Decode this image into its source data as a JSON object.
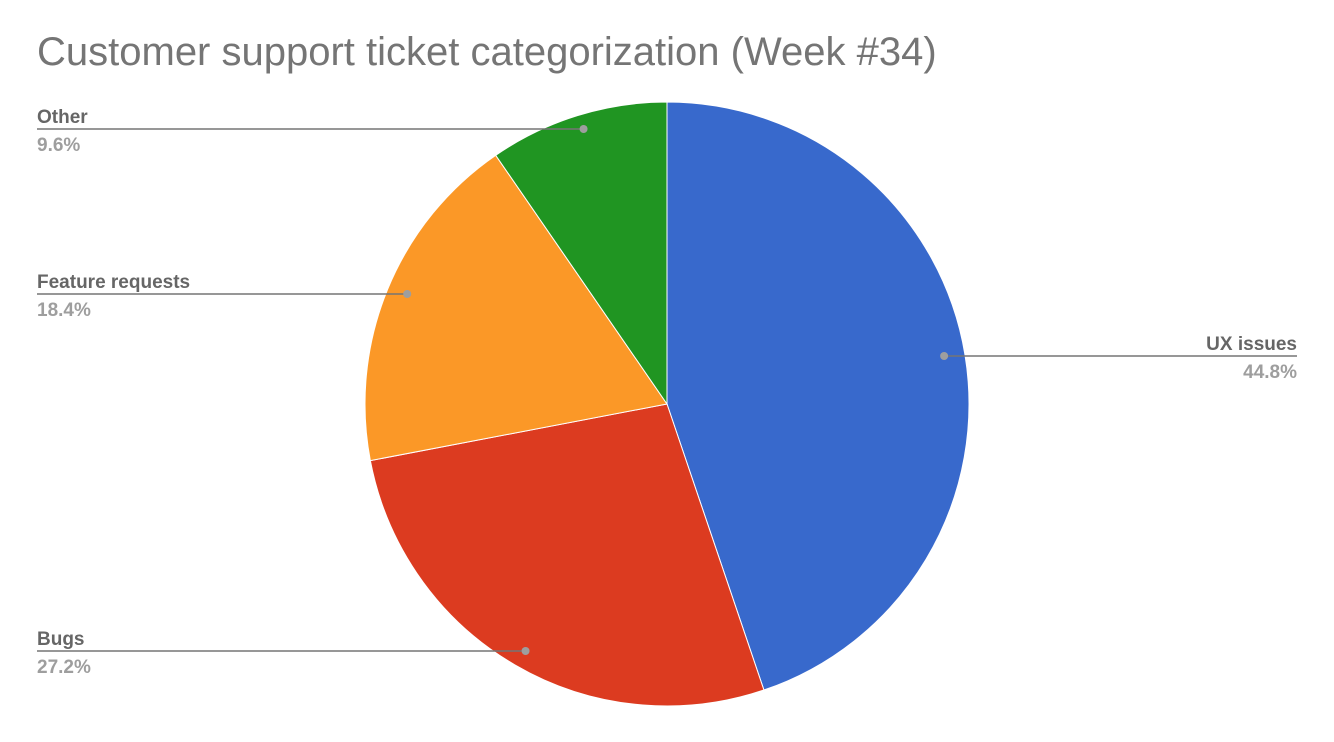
{
  "chart_data": {
    "type": "pie",
    "title": "Customer support ticket categorization (Week #34)",
    "slices": [
      {
        "label": "UX issues",
        "value": 44.8,
        "display": "44.8%",
        "color": "#3869cc"
      },
      {
        "label": "Bugs",
        "value": 27.2,
        "display": "27.2%",
        "color": "#dc3b20"
      },
      {
        "label": "Feature requests",
        "value": 18.4,
        "display": "18.4%",
        "color": "#fb9827"
      },
      {
        "label": "Other",
        "value": 9.6,
        "display": "9.6%",
        "color": "#209522"
      }
    ],
    "legend": "none",
    "label_placement": "outside with leader lines"
  }
}
